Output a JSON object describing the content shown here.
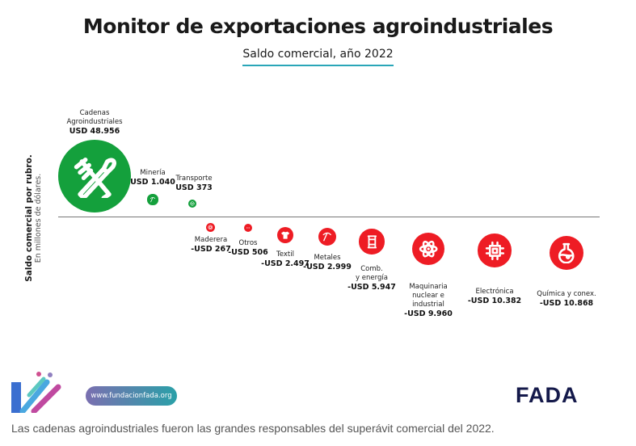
{
  "header": {
    "title": "Monitor de exportaciones agroindustriales",
    "subtitle": "Saldo comercial, año 2022"
  },
  "chart_data": {
    "type": "bubble",
    "title": "Monitor de exportaciones agroindustriales",
    "subtitle": "Saldo comercial, año 2022",
    "ylabel": "Saldo comercial por rubro.",
    "ylabel_sub": "En millones de dólares.",
    "colors": {
      "positive": "#14a03c",
      "negative": "#ee1c24"
    },
    "items": [
      {
        "name": "Cadenas Agroindustriales",
        "value": 48956,
        "label": "USD 48.956",
        "icon": "fork-spoon-icon"
      },
      {
        "name": "Minería",
        "value": 1040,
        "label": "USD 1.040",
        "icon": "pickaxe-icon"
      },
      {
        "name": "Transporte",
        "value": 373,
        "label": "USD 373",
        "icon": "steering-wheel-icon"
      },
      {
        "name": "Maderera",
        "value": -267,
        "label": "-USD 267",
        "icon": "wood-rings-icon"
      },
      {
        "name": "Otros",
        "value": -506,
        "label": "-USD 506",
        "icon": "dots-icon"
      },
      {
        "name": "Textil",
        "value": -2497,
        "label": "-USD 2.497",
        "icon": "tshirt-icon"
      },
      {
        "name": "Metales",
        "value": -2999,
        "label": "-USD 2.999",
        "icon": "pickaxe-icon"
      },
      {
        "name": "Comb. y energía",
        "value": -5947,
        "label": "-USD 5.947",
        "icon": "barrel-icon"
      },
      {
        "name": "Maquinaria nuclear e industrial",
        "value": -9960,
        "label": "-USD 9.960",
        "icon": "atom-icon"
      },
      {
        "name": "Electrónica",
        "value": -10382,
        "label": "-USD 10.382",
        "icon": "chip-icon"
      },
      {
        "name": "Química y conex.",
        "value": -10868,
        "label": "-USD 10.868",
        "icon": "flask-icon"
      }
    ]
  },
  "footer": {
    "url": "www.fundacionfada.org",
    "logo": "FADA",
    "caption": "Las cadenas agroindustriales fueron las grandes responsables del superávit comercial del 2022."
  }
}
